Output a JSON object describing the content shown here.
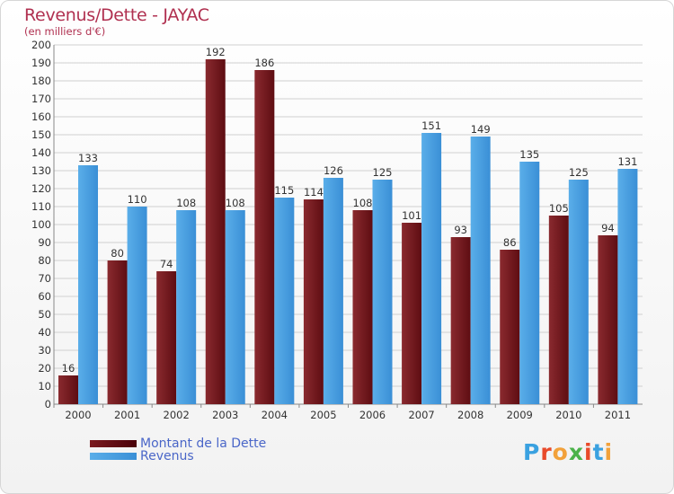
{
  "header": {
    "title": "Revenus/Dette - JAYAC",
    "subtitle": "(en milliers d'€)"
  },
  "chart_data": {
    "type": "bar",
    "categories": [
      "2000",
      "2001",
      "2002",
      "2003",
      "2004",
      "2005",
      "2006",
      "2007",
      "2008",
      "2009",
      "2010",
      "2011"
    ],
    "series": [
      {
        "name": "Montant de la Dette",
        "values": [
          16,
          80,
          74,
          192,
          186,
          114,
          108,
          101,
          93,
          86,
          105,
          94
        ],
        "color": "#7a1a1f"
      },
      {
        "name": "Revenus",
        "values": [
          133,
          110,
          108,
          108,
          115,
          126,
          125,
          151,
          149,
          135,
          125,
          131
        ],
        "color": "#4aa2e6"
      }
    ],
    "ylim": [
      0,
      200
    ],
    "yticks": [
      0,
      10,
      20,
      30,
      40,
      50,
      60,
      70,
      80,
      90,
      100,
      110,
      120,
      130,
      140,
      150,
      160,
      170,
      180,
      190,
      200
    ],
    "grid": true,
    "legend_position": "bottom-left"
  },
  "logo": {
    "text": "Proxiti",
    "letter_colors": [
      "#3aa1e0",
      "#e84a2a",
      "#f2a13a",
      "#4bb24a",
      "#e84a2a",
      "#3aa1e0",
      "#f2a13a"
    ]
  }
}
